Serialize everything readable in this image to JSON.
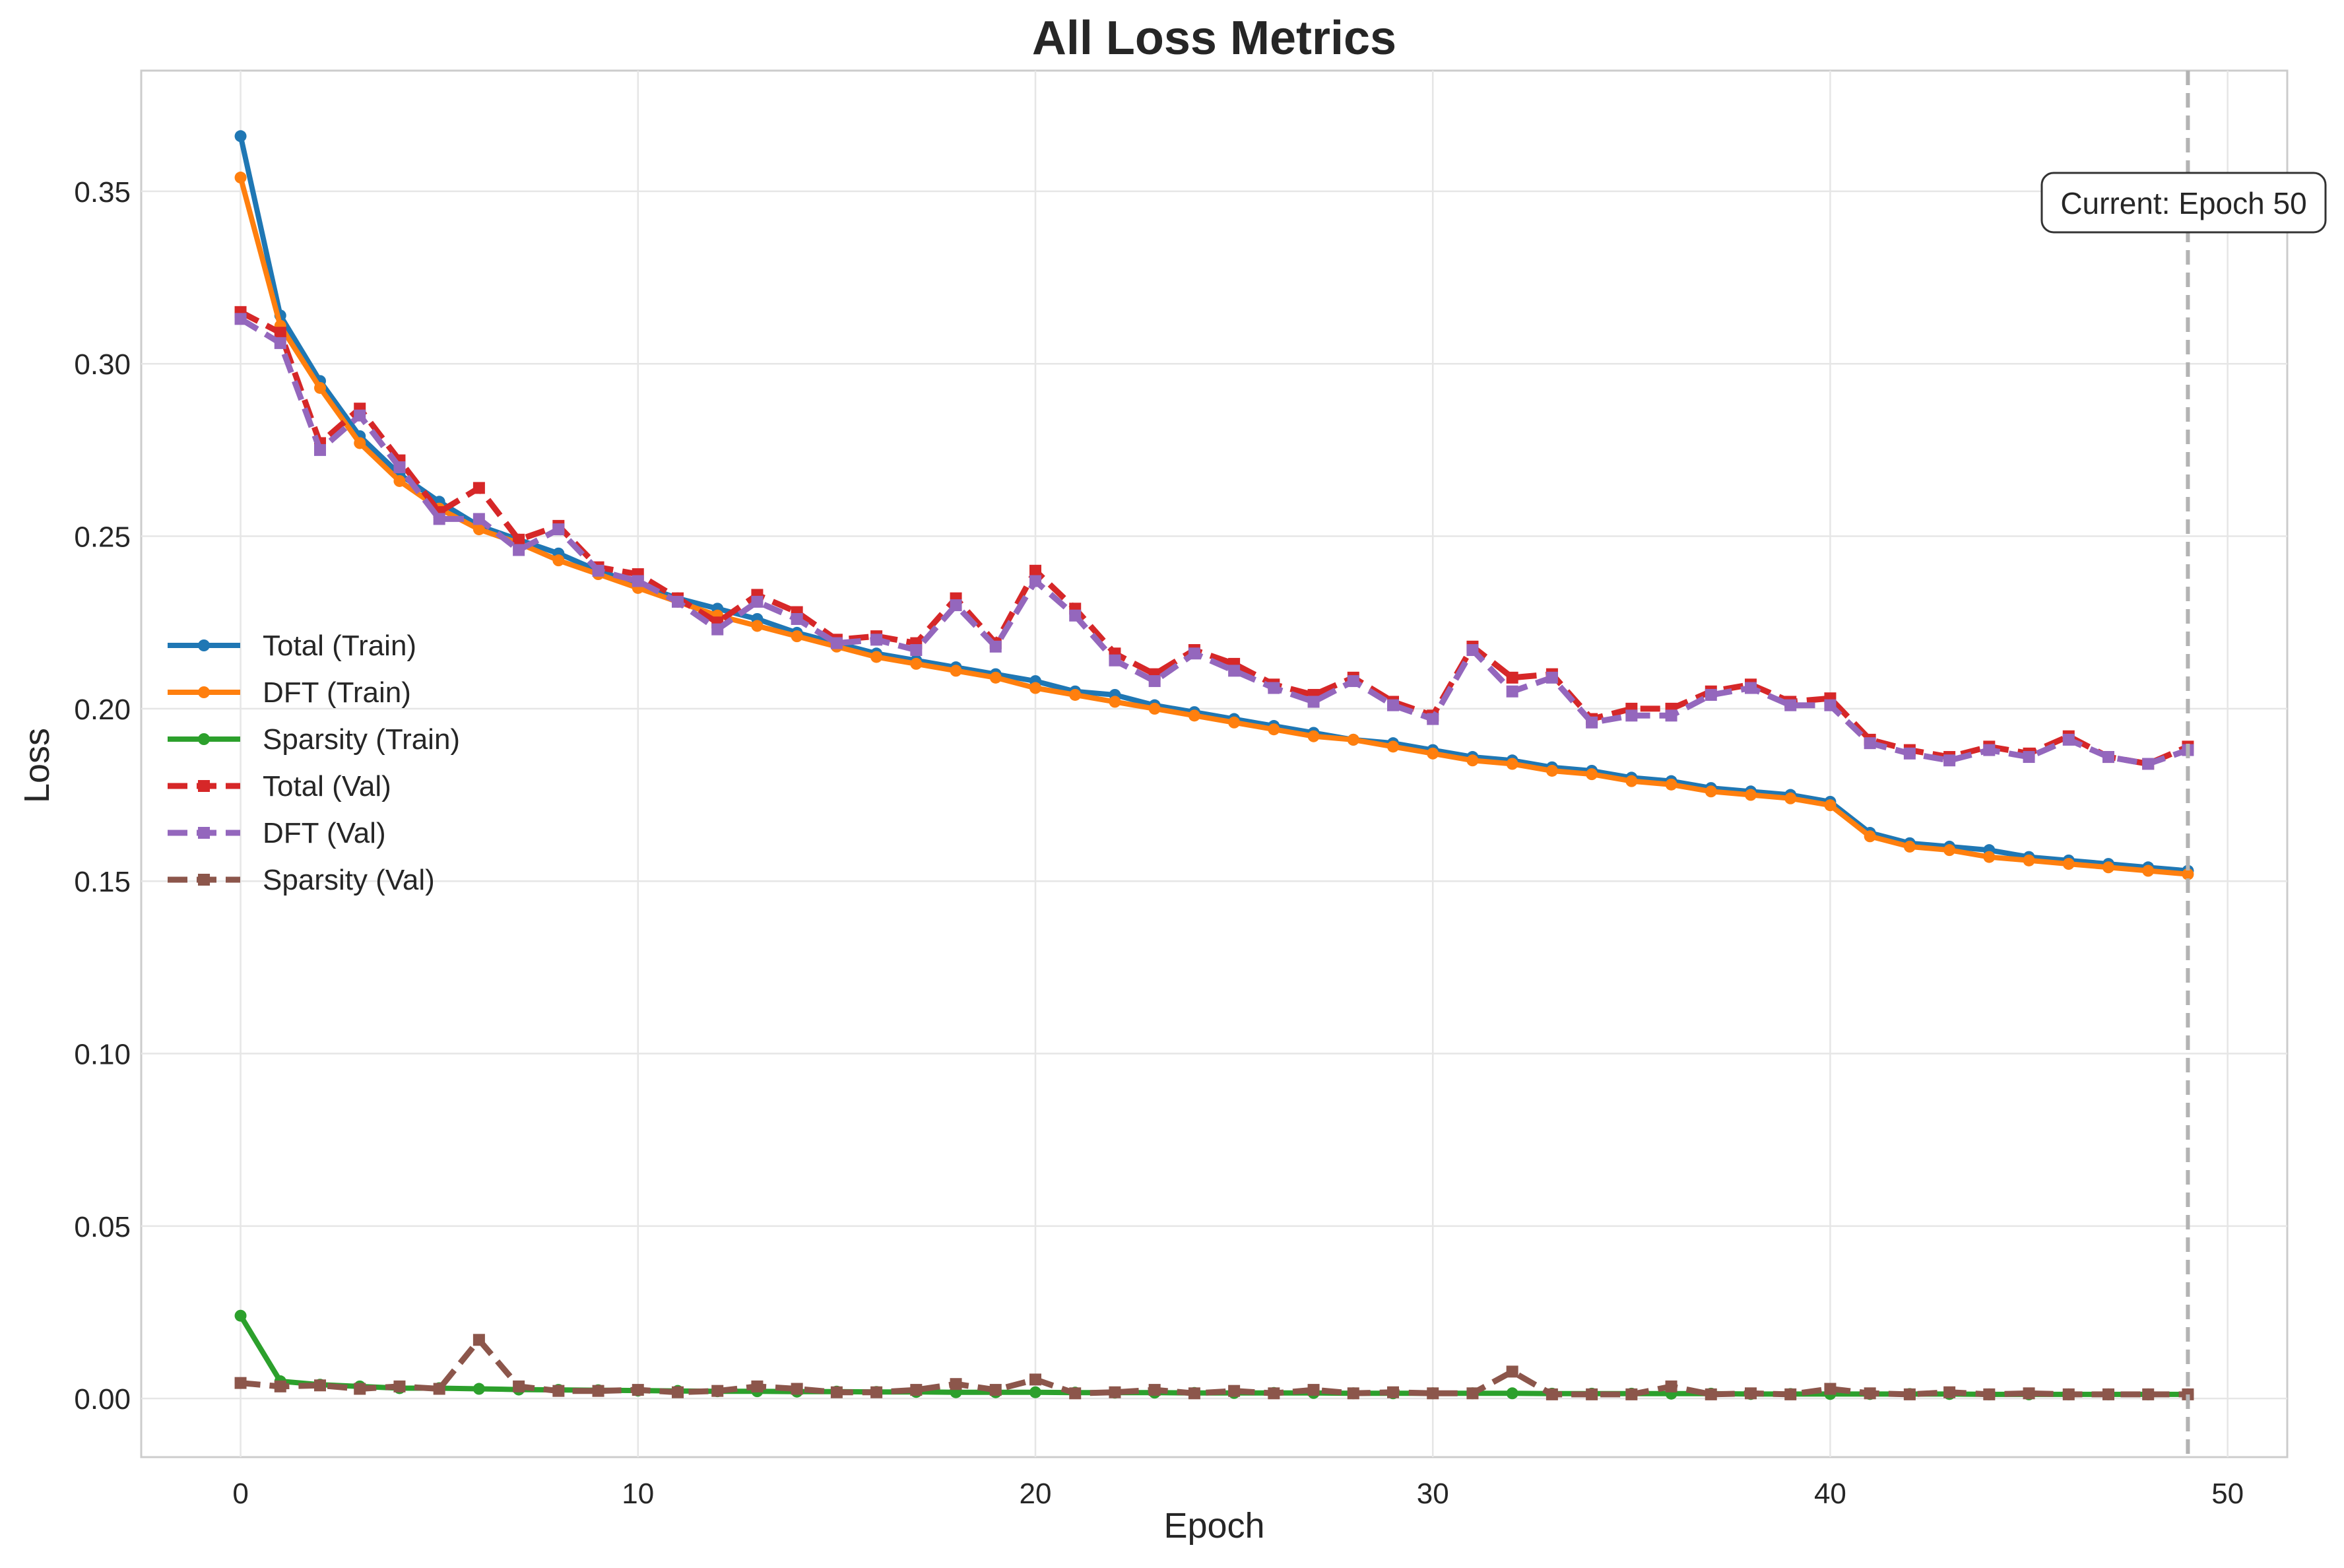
{
  "chart_data": {
    "type": "line",
    "title": "All Loss Metrics",
    "xlabel": "Epoch",
    "ylabel": "Loss",
    "xlim": [
      -2.5,
      51.5
    ],
    "ylim": [
      -0.017,
      0.385
    ],
    "xticks": [
      0,
      10,
      20,
      30,
      40,
      50
    ],
    "yticks": [
      0.0,
      0.05,
      0.1,
      0.15,
      0.2,
      0.25,
      0.3,
      0.35
    ],
    "grid": true,
    "legend_position": "center-left",
    "annotation": {
      "text": "Current: Epoch 50",
      "x": 49
    },
    "x": [
      0,
      1,
      2,
      3,
      4,
      5,
      6,
      7,
      8,
      9,
      10,
      11,
      12,
      13,
      14,
      15,
      16,
      17,
      18,
      19,
      20,
      21,
      22,
      23,
      24,
      25,
      26,
      27,
      28,
      29,
      30,
      31,
      32,
      33,
      34,
      35,
      36,
      37,
      38,
      39,
      40,
      41,
      42,
      43,
      44,
      45,
      46,
      47,
      48,
      49
    ],
    "series": [
      {
        "name": "Total (Train)",
        "color": "#1f77b4",
        "style": "solid",
        "marker": "circle",
        "values": [
          0.366,
          0.314,
          0.295,
          0.279,
          0.268,
          0.26,
          0.253,
          0.249,
          0.245,
          0.24,
          0.236,
          0.232,
          0.229,
          0.226,
          0.222,
          0.219,
          0.216,
          0.214,
          0.212,
          0.21,
          0.208,
          0.205,
          0.204,
          0.201,
          0.199,
          0.197,
          0.195,
          0.193,
          0.191,
          0.19,
          0.188,
          0.186,
          0.185,
          0.183,
          0.182,
          0.18,
          0.179,
          0.177,
          0.176,
          0.175,
          0.173,
          0.164,
          0.161,
          0.16,
          0.159,
          0.157,
          0.156,
          0.155,
          0.154,
          0.153
        ]
      },
      {
        "name": "DFT (Train)",
        "color": "#ff7f0e",
        "style": "solid",
        "marker": "circle",
        "values": [
          0.354,
          0.311,
          0.293,
          0.277,
          0.266,
          0.258,
          0.252,
          0.248,
          0.243,
          0.239,
          0.235,
          0.231,
          0.227,
          0.224,
          0.221,
          0.218,
          0.215,
          0.213,
          0.211,
          0.209,
          0.206,
          0.204,
          0.202,
          0.2,
          0.198,
          0.196,
          0.194,
          0.192,
          0.191,
          0.189,
          0.187,
          0.185,
          0.184,
          0.182,
          0.181,
          0.179,
          0.178,
          0.176,
          0.175,
          0.174,
          0.172,
          0.163,
          0.16,
          0.159,
          0.157,
          0.156,
          0.155,
          0.154,
          0.153,
          0.152
        ]
      },
      {
        "name": "Sparsity (Train)",
        "color": "#2ca02c",
        "style": "solid",
        "marker": "circle",
        "values": [
          0.024,
          0.005,
          0.004,
          0.0035,
          0.003,
          0.003,
          0.0028,
          0.0026,
          0.0025,
          0.0024,
          0.0023,
          0.0022,
          0.0021,
          0.0021,
          0.002,
          0.002,
          0.0019,
          0.0019,
          0.0018,
          0.0018,
          0.0018,
          0.0017,
          0.0017,
          0.0017,
          0.0016,
          0.0016,
          0.0016,
          0.0016,
          0.0015,
          0.0015,
          0.0015,
          0.0015,
          0.0015,
          0.0014,
          0.0014,
          0.0014,
          0.0014,
          0.0014,
          0.0013,
          0.0013,
          0.0013,
          0.0013,
          0.0013,
          0.0013,
          0.0012,
          0.0012,
          0.0012,
          0.0012,
          0.0012,
          0.0012
        ]
      },
      {
        "name": "Total (Val)",
        "color": "#d62728",
        "style": "dashed",
        "marker": "square",
        "values": [
          0.315,
          0.309,
          0.277,
          0.287,
          0.272,
          0.257,
          0.264,
          0.249,
          0.253,
          0.241,
          0.239,
          0.232,
          0.225,
          0.233,
          0.228,
          0.22,
          0.221,
          0.219,
          0.232,
          0.219,
          0.24,
          0.229,
          0.216,
          0.21,
          0.217,
          0.213,
          0.207,
          0.204,
          0.209,
          0.202,
          0.198,
          0.218,
          0.209,
          0.21,
          0.197,
          0.2,
          0.2,
          0.205,
          0.207,
          0.202,
          0.203,
          0.191,
          0.188,
          0.186,
          0.189,
          0.187,
          0.192,
          0.186,
          0.184,
          0.189
        ]
      },
      {
        "name": "DFT (Val)",
        "color": "#9467bd",
        "style": "dashed",
        "marker": "square",
        "values": [
          0.313,
          0.306,
          0.275,
          0.285,
          0.27,
          0.255,
          0.255,
          0.246,
          0.252,
          0.24,
          0.237,
          0.231,
          0.223,
          0.231,
          0.226,
          0.219,
          0.22,
          0.217,
          0.23,
          0.218,
          0.237,
          0.227,
          0.214,
          0.208,
          0.216,
          0.211,
          0.206,
          0.202,
          0.208,
          0.201,
          0.197,
          0.217,
          0.205,
          0.209,
          0.196,
          0.198,
          0.198,
          0.204,
          0.206,
          0.201,
          0.201,
          0.19,
          0.187,
          0.185,
          0.188,
          0.186,
          0.191,
          0.186,
          0.184,
          0.188
        ]
      },
      {
        "name": "Sparsity (Val)",
        "color": "#8c564b",
        "style": "dashed",
        "marker": "square",
        "values": [
          0.0045,
          0.0035,
          0.0038,
          0.0028,
          0.0035,
          0.0028,
          0.017,
          0.0035,
          0.0022,
          0.0022,
          0.0025,
          0.0018,
          0.0022,
          0.0035,
          0.0028,
          0.0018,
          0.0018,
          0.0025,
          0.0042,
          0.0025,
          0.0055,
          0.0015,
          0.0018,
          0.0025,
          0.0015,
          0.0022,
          0.0015,
          0.0025,
          0.0015,
          0.0018,
          0.0015,
          0.0015,
          0.0078,
          0.0012,
          0.0012,
          0.0012,
          0.0035,
          0.0012,
          0.0015,
          0.0012,
          0.0028,
          0.0015,
          0.0012,
          0.0018,
          0.0012,
          0.0015,
          0.0012,
          0.0012,
          0.0012,
          0.0012
        ]
      }
    ]
  }
}
